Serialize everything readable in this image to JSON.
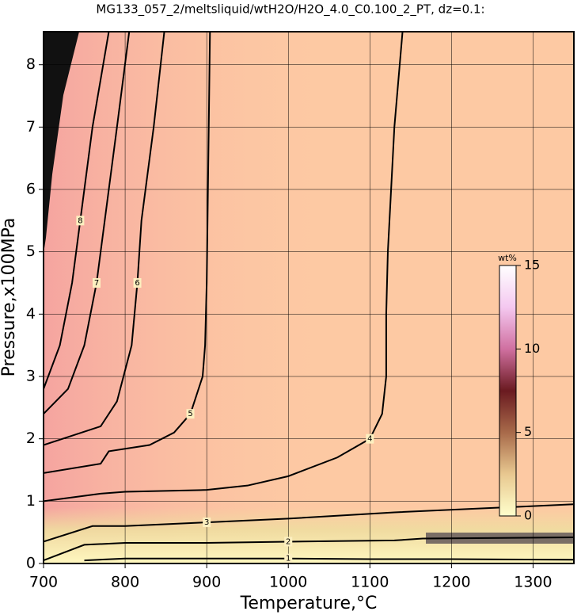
{
  "chart_data": {
    "type": "contour",
    "title": "MG133_057_2/meltsliquid/wtH2O/H2O_4.0_C0.100_2_PT, dz=0.1:",
    "x_label": "Temperature,°C",
    "y_label": "Pressure,x100MPa",
    "xlim": [
      700,
      1350
    ],
    "xticks": [
      700,
      800,
      900,
      1000,
      1100,
      1200,
      1300
    ],
    "ylim": [
      0,
      8.53
    ],
    "yticks": [
      0,
      1,
      2,
      3,
      4,
      5,
      6,
      7,
      8
    ],
    "grid": true,
    "contours": [
      {
        "level": 1,
        "x": [
          750,
          800,
          900,
          1000,
          1100,
          1200,
          1350
        ],
        "y": [
          0.05,
          0.08,
          0.08,
          0.08,
          0.07,
          0.07,
          0.06
        ]
      },
      {
        "level": 2,
        "x": [
          700,
          750,
          800,
          900,
          1000,
          1130,
          1165,
          1350
        ],
        "y": [
          0.05,
          0.3,
          0.33,
          0.33,
          0.35,
          0.37,
          0.4,
          0.42
        ]
      },
      {
        "level": 3,
        "x": [
          700,
          760,
          800,
          900,
          1000,
          1130,
          1350
        ],
        "y": [
          0.35,
          0.6,
          0.6,
          0.66,
          0.72,
          0.82,
          0.95
        ]
      },
      {
        "level": 4,
        "x": [
          700,
          770,
          800,
          900,
          950,
          1000,
          1060,
          1100,
          1115,
          1120,
          1120,
          1122,
          1130,
          1140
        ],
        "y": [
          1.0,
          1.12,
          1.15,
          1.18,
          1.25,
          1.4,
          1.7,
          2.0,
          2.4,
          3.0,
          4.0,
          5.0,
          7.0,
          8.53
        ]
      },
      {
        "level": 5,
        "x": [
          700,
          770,
          780,
          830,
          860,
          880,
          895,
          898,
          900,
          901,
          904
        ],
        "y": [
          1.45,
          1.6,
          1.8,
          1.9,
          2.1,
          2.4,
          3.0,
          3.5,
          4.5,
          5.5,
          8.53
        ]
      },
      {
        "level": 6,
        "x": [
          700,
          770,
          790,
          808,
          815,
          820,
          835,
          848
        ],
        "y": [
          1.9,
          2.2,
          2.6,
          3.5,
          4.5,
          5.5,
          7.0,
          8.53
        ]
      },
      {
        "level": 7,
        "x": [
          700,
          730,
          750,
          765,
          775,
          790,
          805
        ],
        "y": [
          2.4,
          2.8,
          3.5,
          4.5,
          5.5,
          7.0,
          8.53
        ]
      },
      {
        "level": 8,
        "x": [
          700,
          720,
          735,
          745,
          760,
          780
        ],
        "y": [
          2.8,
          3.5,
          4.5,
          5.5,
          7.0,
          8.53
        ]
      }
    ],
    "colorbar": {
      "label": "wt%",
      "lim": [
        0,
        15
      ],
      "ticks": [
        0,
        5,
        10,
        15
      ],
      "colors": [
        "#ffffcc",
        "#e8c890",
        "#a86a4a",
        "#6a1a20",
        "#d070a0",
        "#f4c8f0",
        "#ffffff"
      ]
    }
  }
}
